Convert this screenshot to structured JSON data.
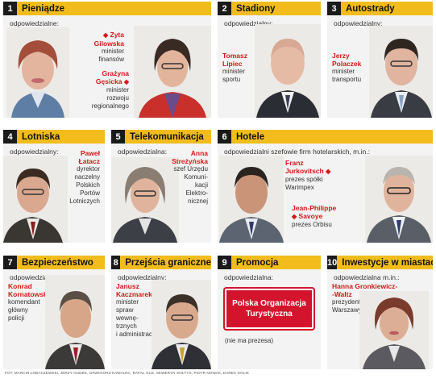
{
  "panels": [
    {
      "num": "1",
      "title": "Pieniądze",
      "resp": "odpowiedzialne:"
    },
    {
      "num": "2",
      "title": "Stadiony",
      "resp": "odpowiedzialny:"
    },
    {
      "num": "3",
      "title": "Autostrady",
      "resp": "odpowiedzialny:"
    },
    {
      "num": "4",
      "title": "Lotniska",
      "resp": "odpowiedzialny:"
    },
    {
      "num": "5",
      "title": "Telekomunikacja",
      "resp": "odpowiedzialna:"
    },
    {
      "num": "6",
      "title": "Hotele",
      "resp": "odpowiedzialni szefowie firm hotelarskich, m.in.:"
    },
    {
      "num": "7",
      "title": "Bezpieczeństwo",
      "resp": "odpowiedzialny:"
    },
    {
      "num": "8",
      "title": "Przejścia graniczne",
      "resp": "odpowiedzialny:"
    },
    {
      "num": "9",
      "title": "Promocja",
      "resp": "odpowiedzialna:"
    },
    {
      "num": "10",
      "title": "Inwestycje w miastach",
      "resp": "odpowiedzialna m.in.:"
    }
  ],
  "people": {
    "gilowska": {
      "name1": "Zyta",
      "name2": "Gilowska",
      "role": [
        "minister",
        "finansów"
      ]
    },
    "gesicka": {
      "name1": "Grażyna",
      "name2": "Gęsicka",
      "role": [
        "minister",
        "rozwoju",
        "regionalnego"
      ]
    },
    "lipiec": {
      "name1": "Tomasz",
      "name2": "Lipiec",
      "role": [
        "minister",
        "sportu"
      ]
    },
    "polaczek": {
      "name1": "Jerzy",
      "name2": "Polaczek",
      "role": [
        "minister",
        "transportu"
      ]
    },
    "latacz": {
      "name1": "Paweł",
      "name2": "Łatacz",
      "role": [
        "dyrektor",
        "naczelny",
        "Polskich",
        "Portów",
        "Lotniczych"
      ]
    },
    "strezynska": {
      "name1": "Anna",
      "name2": "Streżyńska",
      "role": [
        "szef Urzędu",
        "Komuni-",
        "kacji",
        "Elektro-",
        "nicznej"
      ]
    },
    "jurkovitsch": {
      "name1": "Franz",
      "name2": "Jurkovitsch",
      "role": [
        "prezes spółki",
        "Warimpex"
      ]
    },
    "savoye": {
      "name1": "Jean-Philippe",
      "name2": "Savoye",
      "role": [
        "prezes Orbisu"
      ]
    },
    "kornatowski": {
      "name1": "Konrad",
      "name2": "Kornatowski",
      "role": [
        "komendant",
        "główny",
        "policji"
      ]
    },
    "kaczmarek": {
      "name1": "Janusz",
      "name2": "Kaczmarek",
      "role": [
        "minister",
        "spraw",
        "wewnę-",
        "trznych",
        "i administracji"
      ]
    },
    "gronkiewicz": {
      "name1": "Hanna Gronkiewicz-",
      "name2": "-Waltz",
      "role": [
        "prezydent",
        "Warszawy"
      ]
    }
  },
  "promo": {
    "badge": "Polska Organizacja Turystyczna",
    "note": "(nie ma prezesa)"
  },
  "credits": "FOT. MARCIN ŁOBACZEWSKI, JERZY GUDEK, GRZEGORZ KAWALEC, RAFAŁ GUZ, SEWERYN SOŁTYS, PIOTR NOWAK, DAREK GOLIK",
  "colors": {
    "header": "#f2bd1c",
    "number_box": "#1a1a1a",
    "name_red": "#d31818",
    "badge_red": "#d4142c",
    "panel_bg": "#f3f3f3"
  }
}
